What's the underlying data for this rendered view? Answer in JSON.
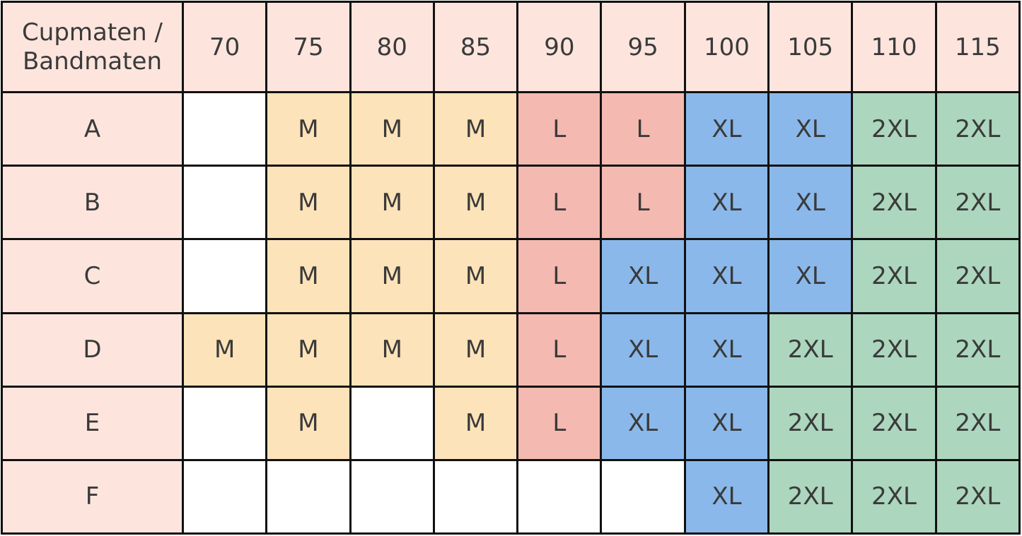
{
  "table": {
    "corner_line1": "Cupmaten /",
    "corner_line2": "Bandmaten",
    "columns": [
      "70",
      "75",
      "80",
      "85",
      "90",
      "95",
      "100",
      "105",
      "110",
      "115"
    ],
    "rows": [
      {
        "cup": "A",
        "cells": [
          "",
          "M",
          "M",
          "M",
          "L",
          "L",
          "XL",
          "XL",
          "2XL",
          "2XL"
        ]
      },
      {
        "cup": "B",
        "cells": [
          "",
          "M",
          "M",
          "M",
          "L",
          "L",
          "XL",
          "XL",
          "2XL",
          "2XL"
        ]
      },
      {
        "cup": "C",
        "cells": [
          "",
          "M",
          "M",
          "M",
          "L",
          "XL",
          "XL",
          "XL",
          "2XL",
          "2XL"
        ]
      },
      {
        "cup": "D",
        "cells": [
          "M",
          "M",
          "M",
          "M",
          "L",
          "XL",
          "XL",
          "2XL",
          "2XL",
          "2XL"
        ]
      },
      {
        "cup": "E",
        "cells": [
          "",
          "M",
          "",
          "M",
          "L",
          "XL",
          "XL",
          "2XL",
          "2XL",
          "2XL"
        ]
      },
      {
        "cup": "F",
        "cells": [
          "",
          "",
          "",
          "",
          "",
          "",
          "XL",
          "2XL",
          "2XL",
          "2XL"
        ]
      }
    ]
  },
  "colors": {
    "header": "#fde5de",
    "M": "#fde3b9",
    "L": "#f4b9b0",
    "XL": "#8ab8ea",
    "2XL": "#acd6bd",
    "empty": "#ffffff",
    "border": "#111111",
    "text": "#3a3a3a"
  }
}
